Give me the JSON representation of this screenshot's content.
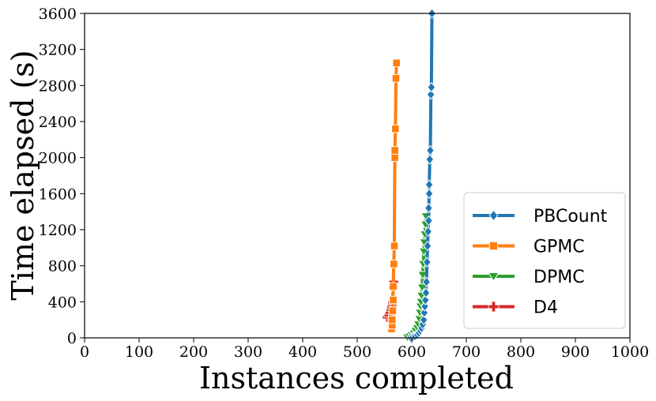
{
  "chart_data": {
    "type": "line",
    "title": "",
    "xlabel": "Instances completed",
    "ylabel": "Time elapsed (s)",
    "xlim": [
      0,
      1000
    ],
    "ylim": [
      0,
      3600
    ],
    "xticks": [
      0,
      100,
      200,
      300,
      400,
      500,
      600,
      700,
      800,
      900,
      1000
    ],
    "yticks": [
      0,
      400,
      800,
      1200,
      1600,
      2000,
      2400,
      2800,
      3200,
      3600
    ],
    "grid": false,
    "legend_position": "lower-right",
    "series": [
      {
        "name": "PBCount",
        "color": "#1f77b4",
        "marker": "diamond",
        "points": [
          [
            598,
            5
          ],
          [
            602,
            10
          ],
          [
            606,
            20
          ],
          [
            610,
            35
          ],
          [
            613,
            55
          ],
          [
            616,
            80
          ],
          [
            618,
            110
          ],
          [
            620,
            150
          ],
          [
            622,
            200
          ],
          [
            623,
            280
          ],
          [
            624,
            350
          ],
          [
            625,
            420
          ],
          [
            626,
            500
          ],
          [
            627,
            620
          ],
          [
            628,
            840
          ],
          [
            629,
            1020
          ],
          [
            630,
            1180
          ],
          [
            631,
            1300
          ],
          [
            631,
            1440
          ],
          [
            632,
            1600
          ],
          [
            632,
            1700
          ],
          [
            633,
            1980
          ],
          [
            634,
            2080
          ],
          [
            635,
            2700
          ],
          [
            636,
            2780
          ],
          [
            637,
            3600
          ]
        ]
      },
      {
        "name": "GPMC",
        "color": "#ff7f0e",
        "marker": "square",
        "points": [
          [
            563,
            100
          ],
          [
            564,
            140
          ],
          [
            564,
            200
          ],
          [
            565,
            300
          ],
          [
            566,
            420
          ],
          [
            566,
            570
          ],
          [
            567,
            820
          ],
          [
            568,
            1020
          ],
          [
            569,
            2000
          ],
          [
            569,
            2080
          ],
          [
            570,
            2320
          ],
          [
            571,
            2880
          ],
          [
            572,
            3050
          ]
        ]
      },
      {
        "name": "DPMC",
        "color": "#2ca02c",
        "marker": "triangle-down",
        "points": [
          [
            592,
            5
          ],
          [
            596,
            15
          ],
          [
            600,
            30
          ],
          [
            604,
            50
          ],
          [
            607,
            80
          ],
          [
            610,
            110
          ],
          [
            612,
            150
          ],
          [
            614,
            210
          ],
          [
            615,
            280
          ],
          [
            616,
            350
          ],
          [
            617,
            400
          ],
          [
            618,
            470
          ],
          [
            619,
            560
          ],
          [
            620,
            700
          ],
          [
            621,
            820
          ],
          [
            622,
            960
          ],
          [
            623,
            1060
          ],
          [
            624,
            1150
          ],
          [
            625,
            1260
          ],
          [
            626,
            1350
          ]
        ]
      },
      {
        "name": "D4",
        "color": "#d62728",
        "marker": "plus",
        "points": [
          [
            555,
            230
          ],
          [
            558,
            250
          ],
          [
            560,
            280
          ],
          [
            562,
            310
          ],
          [
            563,
            340
          ],
          [
            564,
            370
          ],
          [
            565,
            390
          ],
          [
            566,
            560
          ],
          [
            567,
            620
          ]
        ]
      }
    ]
  }
}
